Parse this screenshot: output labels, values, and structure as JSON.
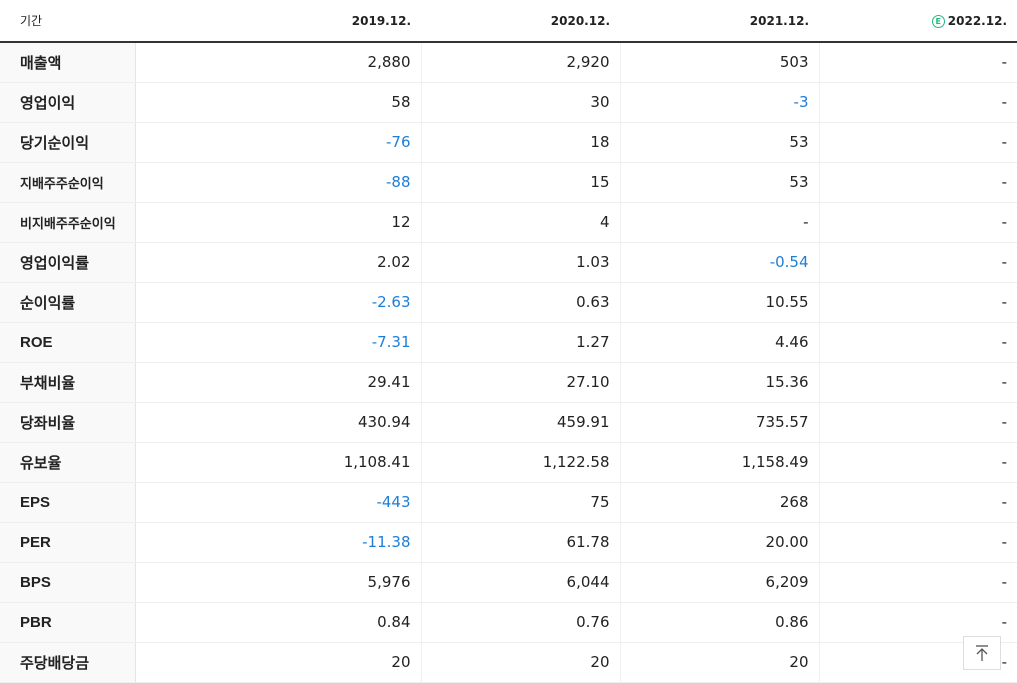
{
  "header": {
    "period_label": "기간",
    "col1": "2019.12.",
    "col2": "2020.12.",
    "col3": "2021.12.",
    "col4": "2022.12.",
    "estimate_badge": "E"
  },
  "rows": [
    {
      "label": "매출액",
      "v1": "2,880",
      "v2": "2,920",
      "v3": "503",
      "v4": "-"
    },
    {
      "label": "영업이익",
      "v1": "58",
      "v2": "30",
      "v3": "-3",
      "v4": "-"
    },
    {
      "label": "당기순이익",
      "v1": "-76",
      "v2": "18",
      "v3": "53",
      "v4": "-"
    },
    {
      "label": "지배주주순이익",
      "v1": "-88",
      "v2": "15",
      "v3": "53",
      "v4": "-"
    },
    {
      "label": "비지배주주순이익",
      "v1": "12",
      "v2": "4",
      "v3": "-",
      "v4": "-"
    },
    {
      "label": "영업이익률",
      "v1": "2.02",
      "v2": "1.03",
      "v3": "-0.54",
      "v4": "-"
    },
    {
      "label": "순이익률",
      "v1": "-2.63",
      "v2": "0.63",
      "v3": "10.55",
      "v4": "-"
    },
    {
      "label": "ROE",
      "v1": "-7.31",
      "v2": "1.27",
      "v3": "4.46",
      "v4": "-"
    },
    {
      "label": "부채비율",
      "v1": "29.41",
      "v2": "27.10",
      "v3": "15.36",
      "v4": "-"
    },
    {
      "label": "당좌비율",
      "v1": "430.94",
      "v2": "459.91",
      "v3": "735.57",
      "v4": "-"
    },
    {
      "label": "유보율",
      "v1": "1,108.41",
      "v2": "1,122.58",
      "v3": "1,158.49",
      "v4": "-"
    },
    {
      "label": "EPS",
      "v1": "-443",
      "v2": "75",
      "v3": "268",
      "v4": "-"
    },
    {
      "label": "PER",
      "v1": "-11.38",
      "v2": "61.78",
      "v3": "20.00",
      "v4": "-"
    },
    {
      "label": "BPS",
      "v1": "5,976",
      "v2": "6,044",
      "v3": "6,209",
      "v4": "-"
    },
    {
      "label": "PBR",
      "v1": "0.84",
      "v2": "0.76",
      "v3": "0.86",
      "v4": "-"
    },
    {
      "label": "주당배당금",
      "v1": "20",
      "v2": "20",
      "v3": "20",
      "v4": "-"
    }
  ],
  "colors": {
    "negative": "#1e7ed6",
    "estimate": "#1fbc7a"
  },
  "top_button_icon": "arrow-up-to-top-icon"
}
